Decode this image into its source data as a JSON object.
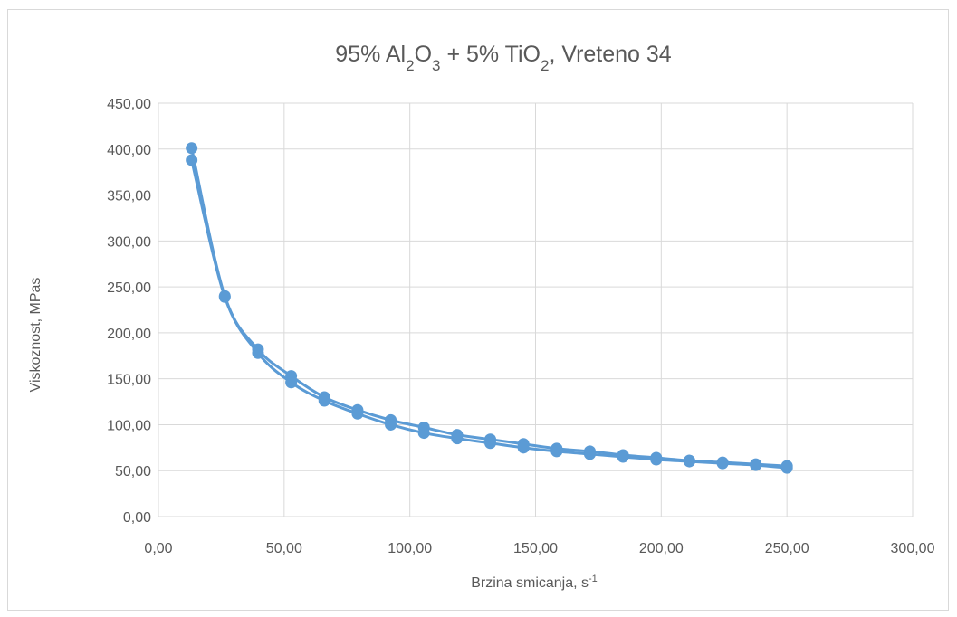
{
  "chart_data": {
    "type": "scatter",
    "title": {
      "parts": [
        {
          "text": "95% Al"
        },
        {
          "text": "2",
          "sub": true
        },
        {
          "text": "O"
        },
        {
          "text": "3",
          "sub": true
        },
        {
          "text": " + 5% TiO"
        },
        {
          "text": "2",
          "sub": true
        },
        {
          "text": ", Vreteno 34"
        }
      ]
    },
    "xlabel": {
      "text": "Brzina smicanja, s",
      "sup": "-1"
    },
    "ylabel": "Viskoznost, MPas",
    "xlim": [
      0,
      300
    ],
    "ylim": [
      0,
      450
    ],
    "x_ticks": [
      "0,00",
      "50,00",
      "100,00",
      "150,00",
      "200,00",
      "250,00",
      "300,00"
    ],
    "y_ticks": [
      "0,00",
      "50,00",
      "100,00",
      "150,00",
      "200,00",
      "250,00",
      "300,00",
      "350,00",
      "400,00",
      "450,00"
    ],
    "grid": true,
    "smooth_lines": true,
    "marker": "circle",
    "series_color": "#5b9bd5",
    "series": [
      {
        "x": [
          13.2,
          26.4,
          39.6,
          52.8,
          66.0,
          79.2,
          92.4,
          105.6,
          118.8,
          132.0,
          145.2,
          158.4,
          171.6,
          184.8,
          198.0,
          211.2,
          224.4,
          237.6,
          250.0
        ],
        "values": [
          401,
          240,
          182,
          153,
          130,
          116,
          105,
          97,
          89,
          84,
          79,
          74,
          71,
          67,
          64,
          61,
          59,
          57,
          55
        ]
      },
      {
        "x": [
          250.0,
          237.6,
          224.4,
          211.2,
          198.0,
          184.8,
          171.6,
          158.4,
          145.2,
          132.0,
          118.8,
          105.6,
          92.4,
          79.2,
          66.0,
          52.8,
          39.6,
          26.4,
          13.2
        ],
        "values": [
          53,
          56,
          58,
          60,
          62,
          65,
          68,
          71,
          75,
          80,
          85,
          91,
          100,
          112,
          126,
          146,
          178,
          239,
          388
        ]
      }
    ]
  }
}
